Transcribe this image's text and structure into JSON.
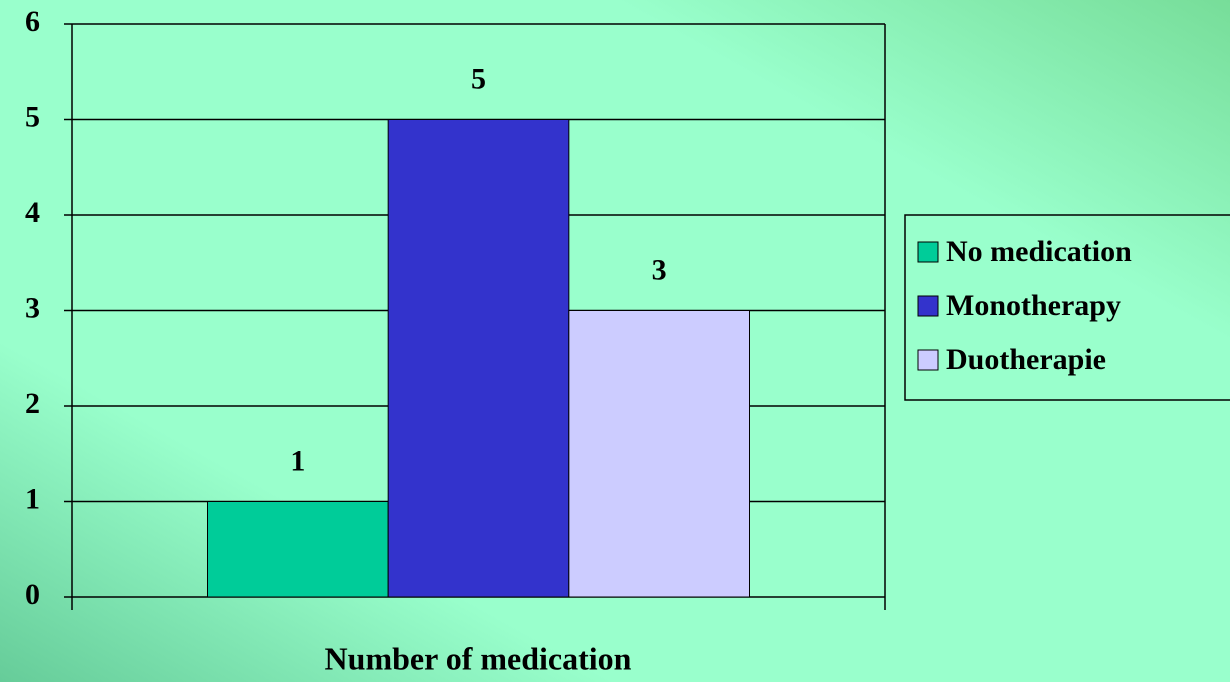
{
  "chart_data": {
    "type": "bar",
    "x_label": "Number of medication",
    "categories": [
      null
    ],
    "series": [
      {
        "name": "No medication",
        "color": "#00cc99",
        "values": [
          1
        ]
      },
      {
        "name": "Monotherapy",
        "color": "#3333cc",
        "values": [
          5
        ]
      },
      {
        "name": "Duotherapie",
        "color": "#ccccff",
        "values": [
          3
        ]
      }
    ],
    "ylim": [
      0,
      6
    ],
    "yticks": [
      0,
      1,
      2,
      3,
      4,
      5,
      6
    ],
    "grid": true,
    "legend": "right"
  }
}
